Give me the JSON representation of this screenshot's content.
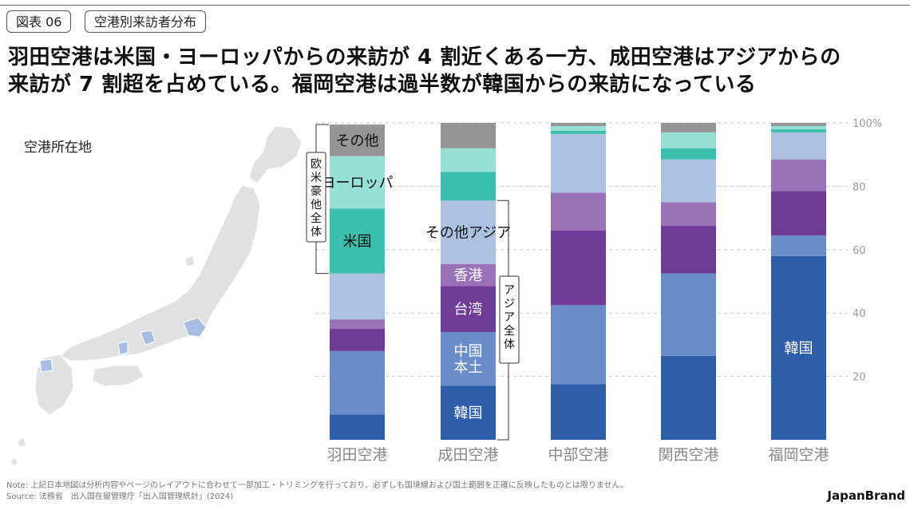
{
  "header": {
    "figure_tag": "図表 06",
    "subject_tag": "空港別来訪者分布",
    "headline_line1": "羽田空港は米国・ヨーロッパからの来訪が 4 割近くある一方、成田空港はアジアからの",
    "headline_line2": "来訪が 7 割超を占めている。福岡空港は過半数が韓国からの来訪になっている"
  },
  "map": {
    "label": "空港所在地"
  },
  "colors": {
    "韓国": "#2e5ea9",
    "中国本土": "#6a8dc7",
    "台湾": "#6f3b96",
    "香港": "#9a72b8",
    "その他アジア": "#adc2e3",
    "米国": "#3dbfad",
    "ヨーロッパ": "#98e0d6",
    "その他": "#959595",
    "map_land": "#e1e1e1",
    "map_highlight": "#a7bde4",
    "bracket": "#333333",
    "grid": "#c8c8c8"
  },
  "chart_data": {
    "type": "bar",
    "stacked": true,
    "categories": [
      "羽田空港",
      "成田空港",
      "中部空港",
      "関西空港",
      "福岡空港"
    ],
    "series": [
      {
        "name": "韓国",
        "values": [
          8,
          17,
          17.5,
          26.5,
          58
        ]
      },
      {
        "name": "中国本土",
        "values": [
          20,
          17,
          25,
          26,
          6.5
        ]
      },
      {
        "name": "台湾",
        "values": [
          7,
          14.5,
          23.5,
          15,
          14
        ]
      },
      {
        "name": "香港",
        "values": [
          3,
          7,
          12,
          7.5,
          10
        ]
      },
      {
        "name": "その他アジア",
        "values": [
          14.5,
          20,
          18.5,
          13.5,
          8.5
        ]
      },
      {
        "name": "米国",
        "values": [
          20.5,
          9,
          1,
          3.5,
          1
        ]
      },
      {
        "name": "ヨーロッパ",
        "values": [
          16.5,
          7.5,
          1.5,
          5,
          1
        ]
      },
      {
        "name": "その他",
        "values": [
          10,
          8,
          1,
          3,
          1
        ]
      }
    ],
    "ylim": [
      0,
      100
    ],
    "yticks": [
      "20",
      "40",
      "60",
      "80",
      "100%"
    ],
    "ytick_values": [
      20,
      40,
      60,
      80,
      100
    ],
    "segment_labels": [
      {
        "bar": 0,
        "series": "その他",
        "text": "その他"
      },
      {
        "bar": 0,
        "series": "ヨーロッパ",
        "text": "ヨーロッパ"
      },
      {
        "bar": 0,
        "series": "米国",
        "text": "米国"
      },
      {
        "bar": 1,
        "series": "その他アジア",
        "text": "その他アジア"
      },
      {
        "bar": 1,
        "series": "香港",
        "text": "香港"
      },
      {
        "bar": 1,
        "series": "台湾",
        "text": "台湾"
      },
      {
        "bar": 1,
        "series": "中国本土",
        "text": "中国\n本土"
      },
      {
        "bar": 1,
        "series": "韓国",
        "text": "韓国"
      },
      {
        "bar": 4,
        "series": "韓国",
        "text": "韓国"
      }
    ],
    "bracket_western": "欧米豪他全体",
    "bracket_asia": "アジア全体"
  },
  "footer": {
    "note": "Note: 上記日本地図は分析内容やページのレイアウトに合わせて一部加工・トリミングを行っており、必ずしも国境線および国土範囲を正確に反映したものとは限りません。",
    "source": "Source: 法務省　出入国在留管理庁「出入国管理統計」(2024)",
    "brand": "JapanBrand"
  }
}
